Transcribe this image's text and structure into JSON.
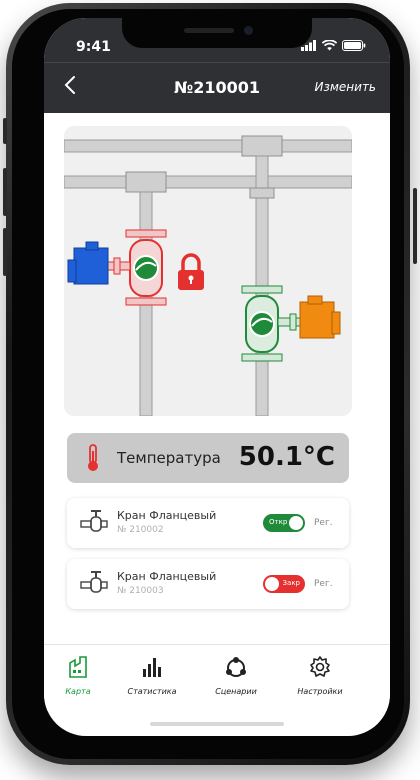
{
  "status_bar": {
    "time": "9:41"
  },
  "nav": {
    "back_icon": "chevron-left-icon",
    "title": "№210001",
    "edit_label": "Изменить"
  },
  "temperature": {
    "label": "Температура",
    "value": "50.1°C",
    "icon": "thermometer-icon"
  },
  "valves": [
    {
      "name": "Кран Фланцевый",
      "number": "№ 210002",
      "state_label": "Откр",
      "state": "open",
      "reg_label": "Рег.",
      "color": "#1f8a3a"
    },
    {
      "name": "Кран Фланцевый",
      "number": "№ 210003",
      "state_label": "Закр",
      "state": "closed",
      "reg_label": "Рег.",
      "color": "#e53030"
    }
  ],
  "tabs": [
    {
      "label": "Карта",
      "icon": "factory-map-icon",
      "active": true
    },
    {
      "label": "Статистика",
      "icon": "bar-chart-icon",
      "active": false
    },
    {
      "label": "Сценарии",
      "icon": "scenario-cycle-icon",
      "active": false
    },
    {
      "label": "Настройки",
      "icon": "gear-icon",
      "active": false
    }
  ],
  "colors": {
    "bar": "#2f3034",
    "active_tab": "#1a9a3a",
    "closed": "#e53030",
    "open": "#1f8a3a",
    "actuator_blue": "#1f5fd8",
    "actuator_orange": "#f08a10"
  }
}
